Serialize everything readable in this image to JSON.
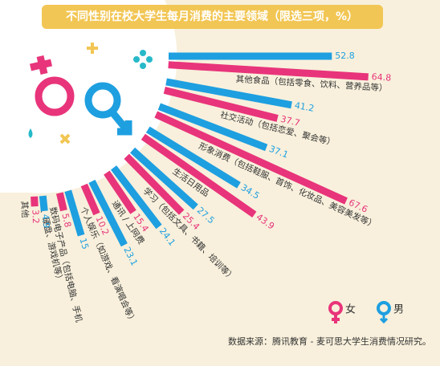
{
  "chart_data": {
    "type": "radial_bar",
    "title": "不同性别在校大学生每月消费的主要领域（限选三项，%）",
    "categories": [
      "其他食品（包括零食、饮料、营养品等）",
      "社交活动（包括恋爱、聚会等）",
      "形象消费（包括鞋服、首饰、化妆品、美容美发等）",
      "生活日用品",
      "学习（包括文具、书籍、培训等）",
      "通讯 / 上网费",
      "个人娱乐（如游戏、看演唱会等）",
      "数码电子产品（包括电脑、手机、硬盘、游戏机等）",
      "其他"
    ],
    "series": [
      {
        "name": "男",
        "color": "#1e9fe0",
        "values": [
          52.8,
          41.2,
          37.1,
          34.5,
          27.5,
          24.1,
          23.1,
          15,
          4.9
        ]
      },
      {
        "name": "女",
        "color": "#e8347a",
        "values": [
          64.8,
          37.7,
          67.6,
          43.9,
          25.4,
          15.4,
          10.2,
          5.8,
          3.2
        ]
      }
    ],
    "source": "数据来源：腾讯教育 - 麦可思大学生消费情况研究。"
  }
}
